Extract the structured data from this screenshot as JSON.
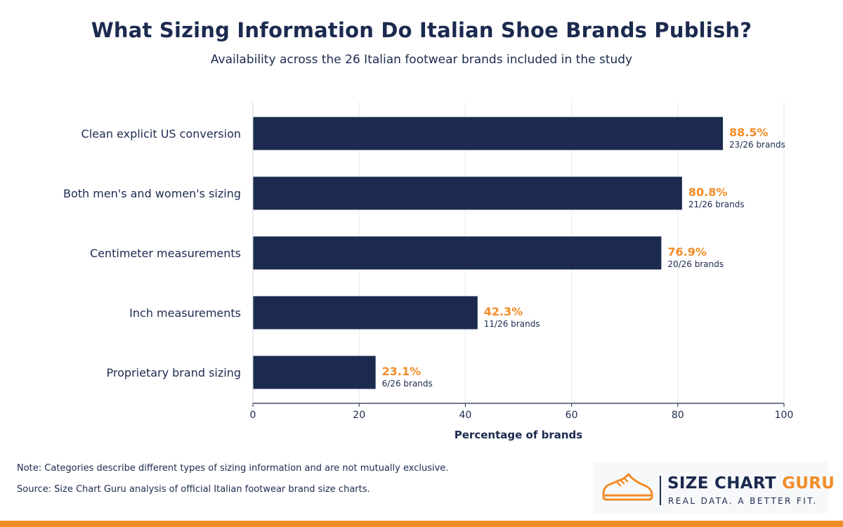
{
  "header": {
    "title": "What Sizing Information Do Italian Shoe Brands Publish?",
    "subtitle": "Availability across the 26 Italian footwear brands included in the study"
  },
  "chart_data": {
    "type": "bar",
    "orientation": "horizontal",
    "categories": [
      "Clean explicit US conversion",
      "Both men's and women's sizing",
      "Centimeter measurements",
      "Inch measurements",
      "Proprietary brand sizing"
    ],
    "values": [
      88.5,
      80.8,
      76.9,
      42.3,
      23.1
    ],
    "value_labels": [
      "88.5%",
      "80.8%",
      "76.9%",
      "42.3%",
      "23.1%"
    ],
    "count_labels": [
      "23/26 brands",
      "21/26 brands",
      "20/26 brands",
      "11/26 brands",
      "6/26 brands"
    ],
    "xlabel": "Percentage of brands",
    "xlim": [
      0,
      100
    ],
    "xticks": [
      0,
      20,
      40,
      60,
      80,
      100
    ],
    "grid": "vertical",
    "colors": {
      "bar": "#1c2a4f",
      "value_label": "#f28c28",
      "grid": "#e6e8ee",
      "axis": "#1c2a4f"
    }
  },
  "footer": {
    "note": "Note: Categories describe different types of sizing information and are not mutually exclusive.",
    "source": "Source: Size Chart Guru analysis of official Italian footwear brand size charts."
  },
  "logo": {
    "word1": "SIZE CHART",
    "word2": "GURU",
    "tagline": "REAL DATA. A BETTER FIT.",
    "icon": "sneaker-icon"
  },
  "theme": {
    "accent": "#f28c28",
    "navy": "#1c2a4f"
  }
}
